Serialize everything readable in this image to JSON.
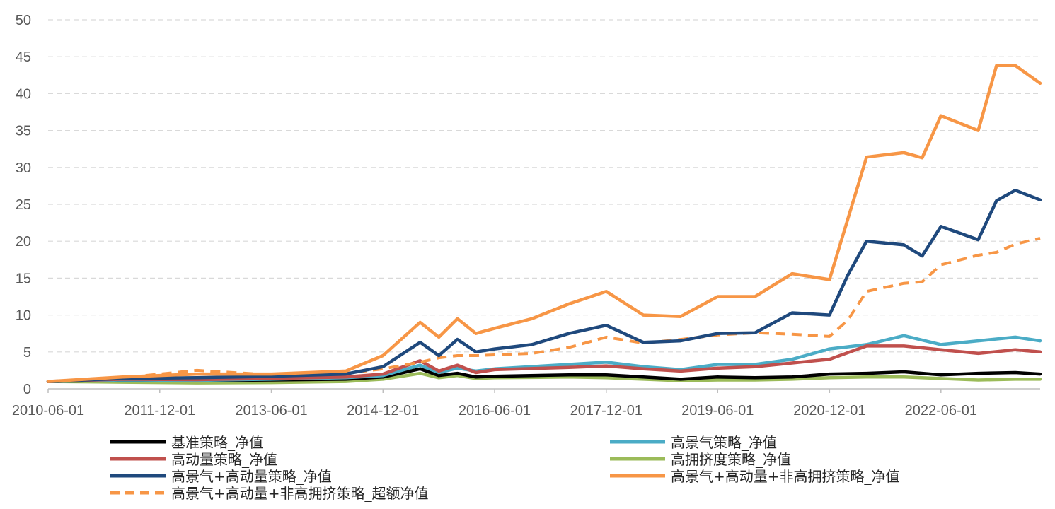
{
  "chart_data": {
    "type": "line",
    "title": "",
    "xlabel": "",
    "ylabel": "",
    "ylim": [
      0,
      50
    ],
    "yticks": [
      0,
      5,
      10,
      15,
      20,
      25,
      30,
      35,
      40,
      45,
      50
    ],
    "grid": true,
    "legend_position": "bottom",
    "x_tick_labels": [
      "2010-06-01",
      "2011-12-01",
      "2013-06-01",
      "2014-12-01",
      "2016-06-01",
      "2017-12-01",
      "2019-06-01",
      "2020-12-01",
      "2022-06-01"
    ],
    "series": [
      {
        "name": "基准策略_净值",
        "color": "#000000",
        "dashed": false,
        "x": [
          "2010-06-01",
          "2011-06-01",
          "2012-06-01",
          "2013-06-01",
          "2014-06-01",
          "2014-12-01",
          "2015-06-01",
          "2015-09-01",
          "2015-12-01",
          "2016-03-01",
          "2016-06-01",
          "2017-06-01",
          "2017-12-01",
          "2018-06-01",
          "2018-12-01",
          "2019-06-01",
          "2019-12-01",
          "2020-06-01",
          "2020-12-01",
          "2021-06-01",
          "2021-12-01",
          "2022-06-01",
          "2022-12-01",
          "2023-06-01",
          "2023-10-01"
        ],
        "values": [
          1.0,
          1.15,
          1.1,
          1.2,
          1.3,
          1.6,
          2.7,
          1.8,
          2.1,
          1.6,
          1.7,
          1.9,
          1.9,
          1.6,
          1.3,
          1.6,
          1.5,
          1.6,
          2.0,
          2.1,
          2.3,
          1.9,
          2.1,
          2.2,
          2.0
        ]
      },
      {
        "name": "高景气策略_净值",
        "color": "#4bacc6",
        "dashed": false,
        "x": [
          "2010-06-01",
          "2011-06-01",
          "2012-06-01",
          "2013-06-01",
          "2014-06-01",
          "2014-12-01",
          "2015-06-01",
          "2015-09-01",
          "2015-12-01",
          "2016-03-01",
          "2016-06-01",
          "2017-06-01",
          "2017-12-01",
          "2018-06-01",
          "2018-12-01",
          "2019-06-01",
          "2019-12-01",
          "2020-06-01",
          "2020-12-01",
          "2021-06-01",
          "2021-12-01",
          "2022-06-01",
          "2022-12-01",
          "2023-06-01",
          "2023-10-01"
        ],
        "values": [
          1.0,
          1.2,
          1.15,
          1.3,
          1.5,
          1.8,
          3.2,
          2.2,
          2.8,
          2.4,
          2.7,
          3.3,
          3.6,
          3.0,
          2.6,
          3.3,
          3.3,
          4.0,
          5.4,
          6.0,
          7.2,
          6.0,
          6.5,
          7.0,
          6.5
        ]
      },
      {
        "name": "高动量策略_净值",
        "color": "#c0504d",
        "dashed": false,
        "x": [
          "2010-06-01",
          "2011-06-01",
          "2012-06-01",
          "2013-06-01",
          "2014-06-01",
          "2014-12-01",
          "2015-06-01",
          "2015-09-01",
          "2015-12-01",
          "2016-03-01",
          "2016-06-01",
          "2017-06-01",
          "2017-12-01",
          "2018-06-01",
          "2018-12-01",
          "2019-06-01",
          "2019-12-01",
          "2020-06-01",
          "2020-12-01",
          "2021-06-01",
          "2021-12-01",
          "2022-06-01",
          "2022-12-01",
          "2023-06-01",
          "2023-10-01"
        ],
        "values": [
          1.0,
          1.3,
          1.25,
          1.4,
          1.6,
          2.0,
          3.8,
          2.4,
          3.2,
          2.2,
          2.6,
          2.9,
          3.1,
          2.7,
          2.4,
          2.8,
          3.0,
          3.5,
          4.0,
          5.8,
          5.8,
          5.3,
          4.8,
          5.3,
          5.0
        ]
      },
      {
        "name": "高拥挤度策略_净值",
        "color": "#9bbb59",
        "dashed": false,
        "x": [
          "2010-06-01",
          "2011-06-01",
          "2012-06-01",
          "2013-06-01",
          "2014-06-01",
          "2014-12-01",
          "2015-06-01",
          "2015-09-01",
          "2015-12-01",
          "2016-03-01",
          "2016-06-01",
          "2017-06-01",
          "2017-12-01",
          "2018-06-01",
          "2018-12-01",
          "2019-06-01",
          "2019-12-01",
          "2020-06-01",
          "2020-12-01",
          "2021-06-01",
          "2021-12-01",
          "2022-06-01",
          "2022-12-01",
          "2023-06-01",
          "2023-10-01"
        ],
        "values": [
          1.0,
          0.9,
          0.8,
          0.85,
          1.0,
          1.3,
          2.1,
          1.5,
          1.8,
          1.4,
          1.5,
          1.6,
          1.5,
          1.3,
          1.1,
          1.2,
          1.2,
          1.3,
          1.5,
          1.6,
          1.6,
          1.4,
          1.2,
          1.3,
          1.3
        ]
      },
      {
        "name": "高景气+高动量策略_净值",
        "color": "#1f497d",
        "dashed": false,
        "x": [
          "2010-06-01",
          "2011-06-01",
          "2012-06-01",
          "2013-06-01",
          "2014-06-01",
          "2014-12-01",
          "2015-06-01",
          "2015-09-01",
          "2015-12-01",
          "2016-03-01",
          "2016-06-01",
          "2016-12-01",
          "2017-06-01",
          "2017-12-01",
          "2018-06-01",
          "2018-12-01",
          "2019-06-01",
          "2019-12-01",
          "2020-06-01",
          "2020-12-01",
          "2021-03-01",
          "2021-06-01",
          "2021-12-01",
          "2022-03-01",
          "2022-06-01",
          "2022-12-01",
          "2023-03-01",
          "2023-06-01",
          "2023-10-01"
        ],
        "values": [
          1.0,
          1.4,
          1.5,
          1.7,
          2.0,
          3.0,
          6.3,
          4.5,
          6.7,
          5.0,
          5.4,
          6.0,
          7.5,
          8.6,
          6.3,
          6.5,
          7.5,
          7.6,
          10.3,
          10.0,
          15.4,
          20.0,
          19.5,
          18.0,
          22.0,
          20.2,
          25.5,
          26.9,
          25.6
        ]
      },
      {
        "name": "高景气+高动量+非高拥挤策略_净值",
        "color": "#f79646",
        "dashed": false,
        "x": [
          "2010-06-01",
          "2011-06-01",
          "2012-06-01",
          "2013-06-01",
          "2014-06-01",
          "2014-12-01",
          "2015-06-01",
          "2015-09-01",
          "2015-12-01",
          "2016-03-01",
          "2016-06-01",
          "2016-12-01",
          "2017-06-01",
          "2017-12-01",
          "2018-06-01",
          "2018-12-01",
          "2019-06-01",
          "2019-12-01",
          "2020-06-01",
          "2020-12-01",
          "2021-03-01",
          "2021-06-01",
          "2021-12-01",
          "2022-03-01",
          "2022-06-01",
          "2022-12-01",
          "2023-03-01",
          "2023-06-01",
          "2023-10-01"
        ],
        "values": [
          1.0,
          1.6,
          2.0,
          2.0,
          2.4,
          4.5,
          9.0,
          7.0,
          9.5,
          7.5,
          8.2,
          9.5,
          11.5,
          13.2,
          10.0,
          9.8,
          12.5,
          12.5,
          15.6,
          14.8,
          23.0,
          31.4,
          32.0,
          31.3,
          37.0,
          35.0,
          43.8,
          43.8,
          41.4
        ]
      },
      {
        "name": "高景气+高动量+非高拥挤策略_超额净值",
        "color": "#f79646",
        "dashed": true,
        "x": [
          "2010-06-01",
          "2011-06-01",
          "2012-06-01",
          "2013-06-01",
          "2014-06-01",
          "2014-12-01",
          "2015-06-01",
          "2015-09-01",
          "2015-12-01",
          "2016-03-01",
          "2016-06-01",
          "2016-12-01",
          "2017-06-01",
          "2017-12-01",
          "2018-06-01",
          "2018-12-01",
          "2019-06-01",
          "2019-12-01",
          "2020-06-01",
          "2020-12-01",
          "2021-03-01",
          "2021-06-01",
          "2021-12-01",
          "2022-03-01",
          "2022-06-01",
          "2022-12-01",
          "2023-03-01",
          "2023-06-01",
          "2023-10-01"
        ],
        "values": [
          1.0,
          1.5,
          2.5,
          1.9,
          2.1,
          2.7,
          3.6,
          4.2,
          4.5,
          4.5,
          4.6,
          4.8,
          5.6,
          7.0,
          6.2,
          6.7,
          7.3,
          7.6,
          7.4,
          7.1,
          9.3,
          13.2,
          14.3,
          14.5,
          16.8,
          18.1,
          18.5,
          19.6,
          20.4
        ]
      }
    ]
  }
}
